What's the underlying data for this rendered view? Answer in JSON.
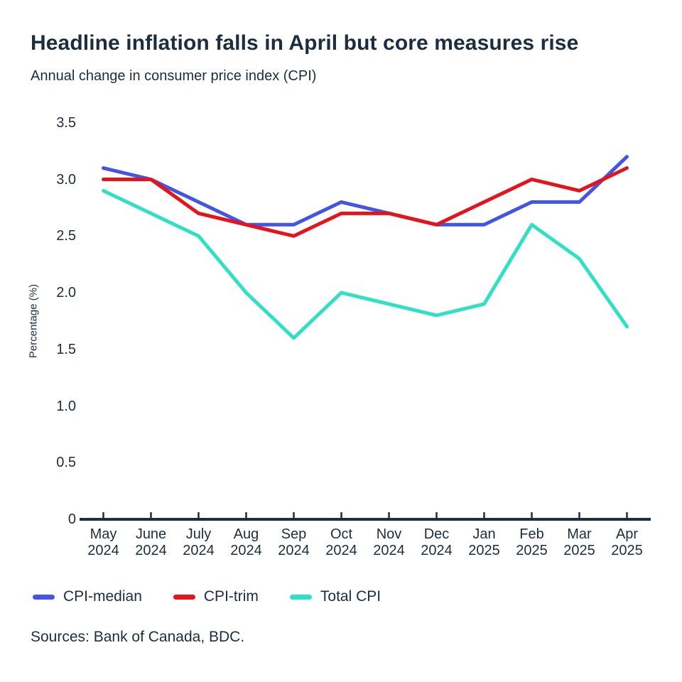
{
  "header": {
    "title": "Headline inflation falls in April but core measures rise",
    "subtitle": "Annual change in consumer price index (CPI)"
  },
  "chart_data": {
    "type": "line",
    "title": "Headline inflation falls in April but core measures rise",
    "subtitle": "Annual change in consumer price index (CPI)",
    "xlabel": "",
    "ylabel": "Percentage (%)",
    "ylim": [
      0,
      3.5
    ],
    "ytick_step": 0.5,
    "grid": false,
    "legend_position": "bottom-left",
    "categories": [
      "May 2024",
      "June 2024",
      "July 2024",
      "Aug 2024",
      "Sep 2024",
      "Oct 2024",
      "Nov 2024",
      "Dec 2024",
      "Jan 2025",
      "Feb 2025",
      "Mar 2025",
      "Apr 2025"
    ],
    "series": [
      {
        "name": "CPI-median",
        "color": "#4355e4",
        "values": [
          3.1,
          3.0,
          2.8,
          2.6,
          2.6,
          2.8,
          2.7,
          2.6,
          2.6,
          2.8,
          2.8,
          3.2
        ]
      },
      {
        "name": "CPI-trim",
        "color": "#e5141c",
        "values": [
          3.0,
          3.0,
          2.7,
          2.6,
          2.5,
          2.7,
          2.7,
          2.6,
          2.8,
          3.0,
          2.9,
          3.1
        ]
      },
      {
        "name": "Total CPI",
        "color": "#30e0c5",
        "values": [
          2.9,
          2.7,
          2.5,
          2.0,
          1.6,
          2.0,
          1.9,
          1.8,
          1.9,
          2.6,
          2.3,
          1.7
        ]
      }
    ],
    "axis_color": "#1b2d40",
    "text_color": "#1b2d40"
  },
  "footer": {
    "sources": "Sources: Bank of Canada, BDC."
  }
}
